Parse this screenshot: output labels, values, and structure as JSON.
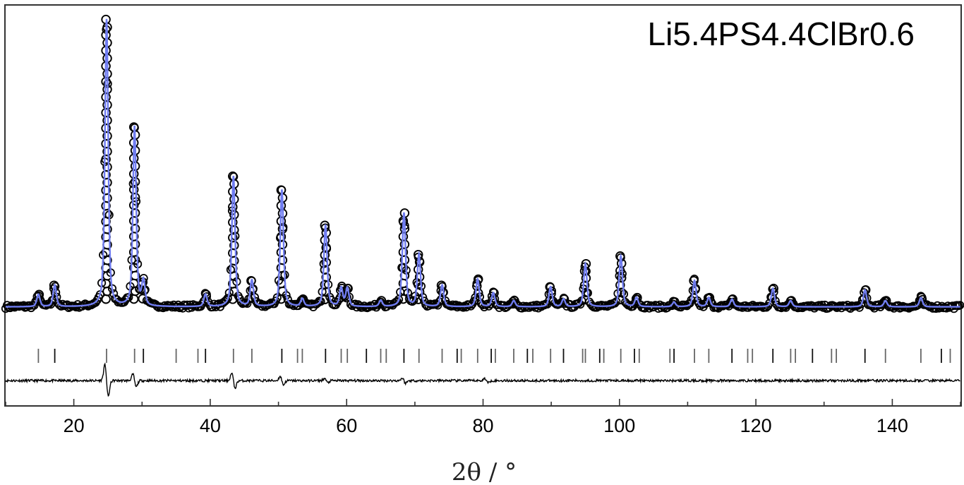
{
  "chart_data": {
    "type": "scatter",
    "annotation": "Li5.4PS4.4ClBr0.6",
    "xlabel": "2θ / °",
    "ylabel": "",
    "xlim": [
      10,
      150
    ],
    "ylim": [
      -0.3,
      1.0
    ],
    "x_ticks": [
      20,
      40,
      60,
      80,
      100,
      120,
      140
    ],
    "y_ticks_shown": false,
    "grid": false,
    "legend": "none",
    "series": [
      {
        "role": "observed",
        "style": "open black circles",
        "color": "#000000"
      },
      {
        "role": "calculated",
        "style": "solid line",
        "color": "#6f7cf0"
      },
      {
        "role": "bragg_positions",
        "style": "vertical tick marks",
        "color": "#555555"
      },
      {
        "role": "difference",
        "style": "thin line",
        "color": "#000000"
      }
    ],
    "background_level": 0.02,
    "peaks": [
      {
        "x": 14.8,
        "h": 0.04
      },
      {
        "x": 17.2,
        "h": 0.07
      },
      {
        "x": 24.8,
        "h": 0.935
      },
      {
        "x": 28.9,
        "h": 0.585
      },
      {
        "x": 30.2,
        "h": 0.08
      },
      {
        "x": 39.3,
        "h": 0.04
      },
      {
        "x": 43.4,
        "h": 0.425
      },
      {
        "x": 46.1,
        "h": 0.085
      },
      {
        "x": 50.5,
        "h": 0.38
      },
      {
        "x": 53.5,
        "h": 0.025
      },
      {
        "x": 56.9,
        "h": 0.265
      },
      {
        "x": 59.2,
        "h": 0.06
      },
      {
        "x": 60.1,
        "h": 0.06
      },
      {
        "x": 65.0,
        "h": 0.02
      },
      {
        "x": 68.4,
        "h": 0.305
      },
      {
        "x": 70.6,
        "h": 0.17
      },
      {
        "x": 74.0,
        "h": 0.07
      },
      {
        "x": 79.2,
        "h": 0.09
      },
      {
        "x": 81.5,
        "h": 0.045
      },
      {
        "x": 84.5,
        "h": 0.02
      },
      {
        "x": 89.9,
        "h": 0.065
      },
      {
        "x": 91.8,
        "h": 0.025
      },
      {
        "x": 95.0,
        "h": 0.14
      },
      {
        "x": 100.2,
        "h": 0.165
      },
      {
        "x": 102.5,
        "h": 0.03
      },
      {
        "x": 108.0,
        "h": 0.015
      },
      {
        "x": 111.0,
        "h": 0.085
      },
      {
        "x": 113.1,
        "h": 0.03
      },
      {
        "x": 116.5,
        "h": 0.025
      },
      {
        "x": 122.5,
        "h": 0.06
      },
      {
        "x": 125.1,
        "h": 0.02
      },
      {
        "x": 136.0,
        "h": 0.055
      },
      {
        "x": 139.0,
        "h": 0.02
      },
      {
        "x": 144.2,
        "h": 0.03
      }
    ],
    "bragg_positions": [
      14.8,
      17.2,
      24.8,
      28.9,
      30.2,
      35.0,
      38.2,
      39.3,
      43.4,
      46.1,
      50.5,
      52.8,
      53.5,
      56.9,
      59.2,
      60.1,
      62.9,
      65.0,
      65.8,
      68.4,
      70.6,
      74.0,
      76.2,
      76.8,
      79.2,
      81.2,
      81.8,
      84.5,
      86.5,
      87.3,
      89.9,
      91.8,
      94.6,
      95.0,
      97.1,
      97.7,
      100.2,
      102.2,
      102.9,
      107.4,
      108.0,
      111.0,
      113.1,
      116.5,
      118.8,
      119.5,
      122.5,
      125.1,
      125.8,
      128.3,
      131.1,
      131.8,
      136.0,
      139.0,
      144.2,
      147.2,
      148.5
    ],
    "difference_features": [
      {
        "x": 24.8,
        "amp": 0.075
      },
      {
        "x": 28.9,
        "amp": 0.03
      },
      {
        "x": 43.4,
        "amp": 0.035
      },
      {
        "x": 50.5,
        "amp": 0.02
      },
      {
        "x": 57.0,
        "amp": 0.01
      },
      {
        "x": 68.4,
        "amp": 0.012
      },
      {
        "x": 80.5,
        "amp": 0.01
      }
    ]
  }
}
